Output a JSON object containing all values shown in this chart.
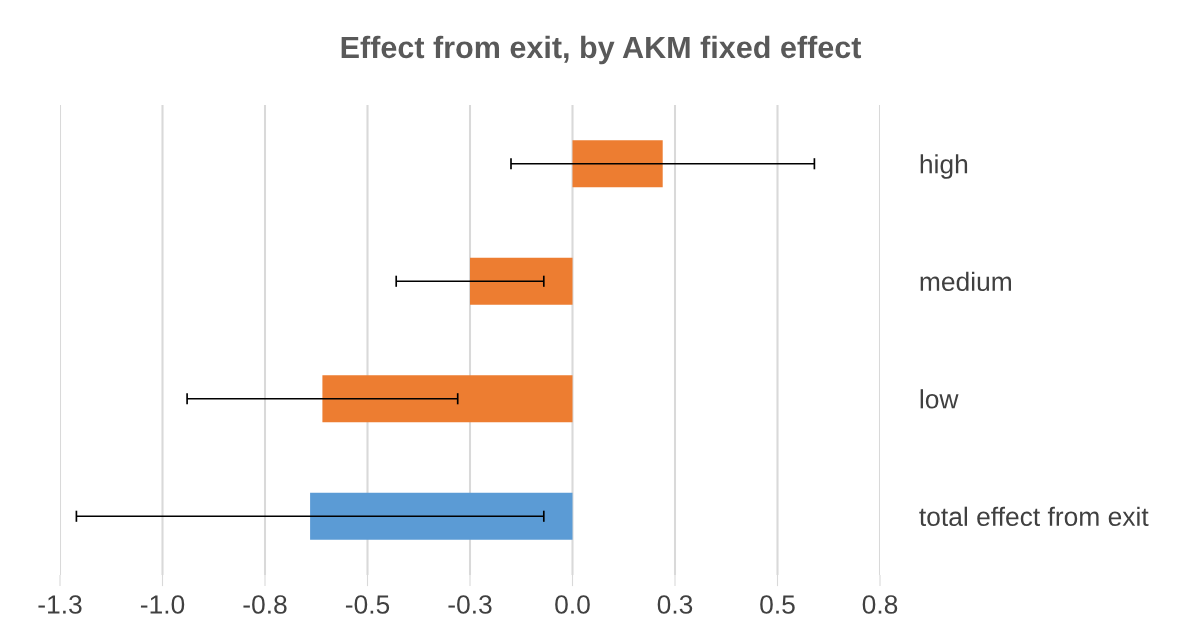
{
  "chart_data": {
    "type": "bar",
    "orientation": "horizontal",
    "title": "Effect from exit, by AKM fixed effect",
    "categories": [
      "high",
      "medium",
      "low",
      "total effect from exit"
    ],
    "values": [
      0.22,
      -0.25,
      -0.61,
      -0.64
    ],
    "errors": [
      0.37,
      0.18,
      0.33,
      0.57
    ],
    "colors": [
      "#ed7d31",
      "#ed7d31",
      "#ed7d31",
      "#5b9bd5"
    ],
    "xlim": [
      -1.25,
      0.75
    ],
    "xticks": [
      {
        "value": -1.25,
        "label": "-1.3"
      },
      {
        "value": -1.0,
        "label": "-1.0"
      },
      {
        "value": -0.75,
        "label": "-0.8"
      },
      {
        "value": -0.5,
        "label": "-0.5"
      },
      {
        "value": -0.25,
        "label": "-0.3"
      },
      {
        "value": 0.0,
        "label": "0.0"
      },
      {
        "value": 0.25,
        "label": "0.3"
      },
      {
        "value": 0.5,
        "label": "0.5"
      },
      {
        "value": 0.75,
        "label": "0.8"
      }
    ],
    "grid": "x"
  }
}
